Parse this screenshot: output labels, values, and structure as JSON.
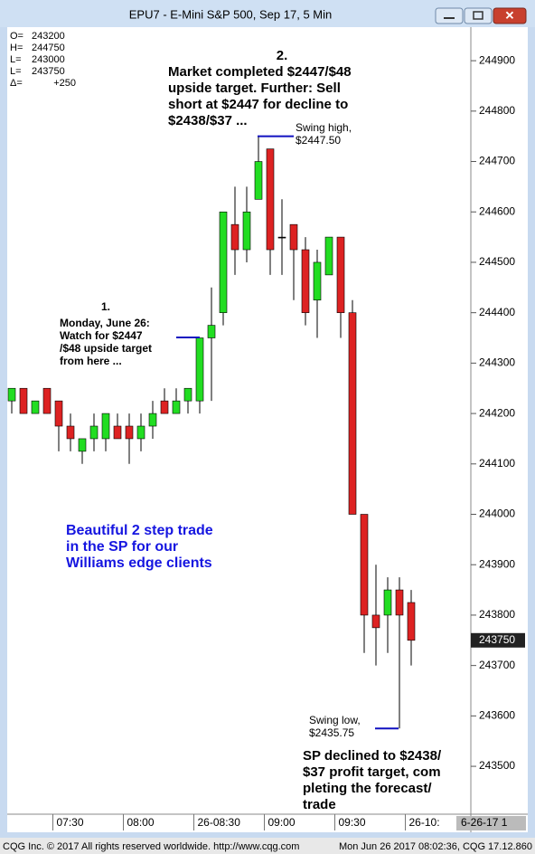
{
  "chart_data": {
    "type": "candlestick",
    "title": "EPU7 - E-Mini S&P 500, Sep 17, 5 Min",
    "open": [
      244225,
      244250,
      244200,
      244250,
      244225,
      244175,
      244125,
      244150,
      244150,
      244175,
      244175,
      244150,
      244175,
      244225,
      244200,
      244225,
      244225,
      244350,
      244400,
      244575,
      244525,
      244625,
      244725,
      244550,
      244575,
      244525,
      244425,
      244475,
      244550,
      244400,
      244000,
      243800,
      243800,
      243850,
      243825
    ],
    "high": [
      244250,
      244250,
      244225,
      244250,
      244225,
      244200,
      244150,
      244200,
      244200,
      244200,
      244200,
      244200,
      244225,
      244250,
      244250,
      244250,
      244350,
      244450,
      244600,
      244650,
      244650,
      244750,
      244725,
      244625,
      244575,
      244550,
      244525,
      244550,
      244550,
      244425,
      244000,
      243900,
      243875,
      243875,
      243850
    ],
    "low": [
      244200,
      244200,
      244200,
      244200,
      244125,
      244125,
      244100,
      244125,
      244125,
      244150,
      244100,
      244125,
      244150,
      244200,
      244200,
      244200,
      244200,
      244225,
      244375,
      244475,
      244500,
      244625,
      244475,
      244475,
      244425,
      244375,
      244350,
      244475,
      244350,
      244000,
      243725,
      243700,
      243725,
      243575,
      243700
    ],
    "close": [
      244250,
      244200,
      244225,
      244200,
      244175,
      244150,
      244150,
      244175,
      244200,
      244150,
      244150,
      244175,
      244200,
      244200,
      244225,
      244250,
      244350,
      244375,
      244600,
      244525,
      244600,
      244700,
      244525,
      244550,
      244525,
      244400,
      244500,
      244550,
      244400,
      244000,
      243800,
      243775,
      243850,
      243800,
      243750
    ],
    "up_color": "#22dd22",
    "down_color": "#dd2222",
    "ylim": [
      243405,
      244963
    ],
    "yticks": [
      243500,
      243600,
      243700,
      243800,
      243900,
      244000,
      244100,
      244200,
      244300,
      244400,
      244500,
      244600,
      244700,
      244800,
      244900
    ],
    "xticks": [
      {
        "value": 3.5,
        "label": "07:30"
      },
      {
        "value": 9.5,
        "label": "08:00"
      },
      {
        "value": 15.5,
        "label": "26-08:30"
      },
      {
        "value": 21.5,
        "label": "09:00"
      },
      {
        "value": 27.5,
        "label": "09:30"
      },
      {
        "value": 33.5,
        "label": "26-10:"
      }
    ],
    "last_price": 243750,
    "date_box": "6-26-17 1",
    "info": [
      {
        "label": "O=",
        "value": 243200
      },
      {
        "label": "H=",
        "value": 244750
      },
      {
        "label": "L=",
        "value": 243000
      },
      {
        "label": "L=",
        "value": 243750
      },
      {
        "label": "Δ=",
        "value": 250,
        "value_label": "+250"
      }
    ],
    "annotations": [
      {
        "lines": [
          "1.",
          "Monday, June 26:",
          "Watch for $2447",
          "/$48 upside target",
          "from here ..."
        ]
      },
      {
        "lines": [
          "2.",
          "Market completed $2447/$48",
          "upside target.  Further: Sell",
          "short at $2447 for decline to",
          "$2438/$37 ..."
        ]
      },
      {
        "lines": [
          "Beautiful 2 step trade",
          "in the SP for our",
          "Williams edge clients"
        ]
      },
      {
        "lines": [
          "SP declined to $2438/",
          "$37 profit target, com",
          "pleting the forecast/",
          "trade"
        ]
      },
      {
        "lines": [
          "Swing high,",
          "$2447.50"
        ]
      },
      {
        "lines": [
          "Swing low,",
          "$2435.75"
        ]
      }
    ]
  },
  "footer": {
    "left": "CQG Inc. © 2017 All rights reserved worldwide. http://www.cqg.com",
    "right": "Mon Jun 26 2017 08:02:36, CQG 17.12.860"
  }
}
